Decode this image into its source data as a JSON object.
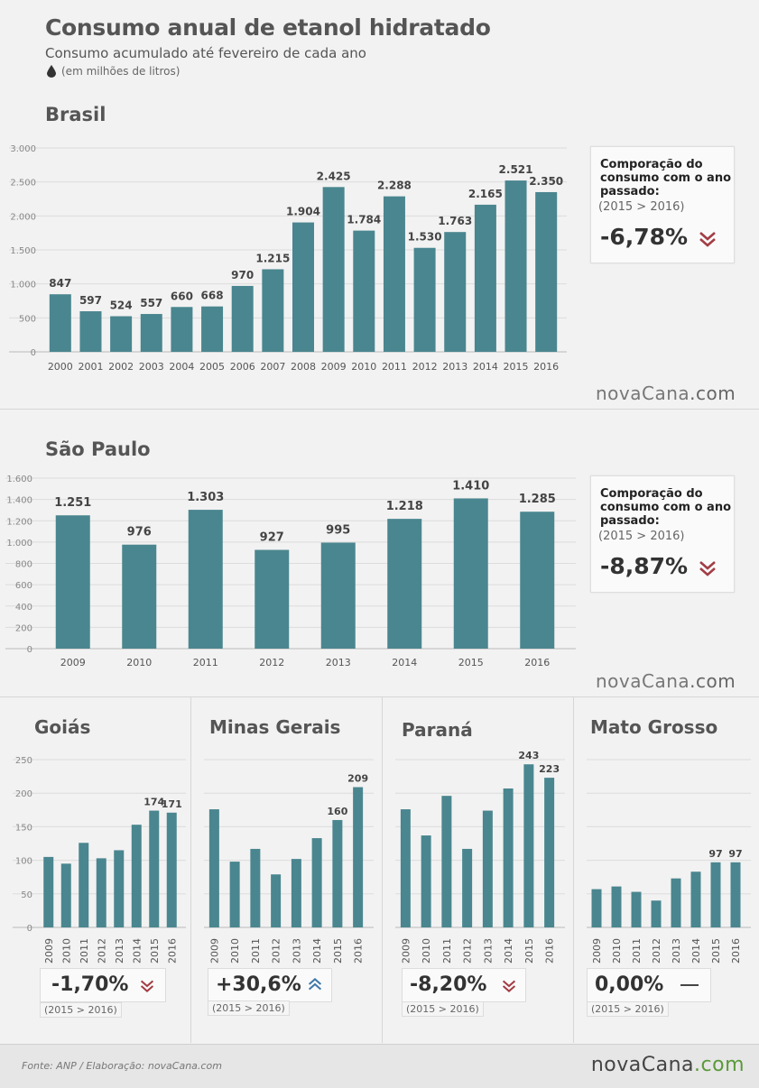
{
  "header": {
    "title": "Consumo anual de etanol hidratado",
    "subtitle": "Consumo acumulado até fevereiro de cada ano",
    "unit": "(em milhões de litros)"
  },
  "brand": {
    "name": "nova",
    "name2": "Cana",
    "tld": ".com"
  },
  "footer": {
    "source": "Fonte: ANP  / Elaboração: novaCana.com"
  },
  "colors": {
    "bar": "#4a868f",
    "down": "#a33d45",
    "up": "#3f78aa",
    "flat": "#444444"
  },
  "comparison": {
    "heading": "Comporação do consumo com o ano passado:",
    "period": "(2015 > 2016)"
  },
  "panels": {
    "brasil": {
      "region": "Brasil",
      "change": "-6,78%",
      "trend": "down"
    },
    "saopaulo": {
      "region": "São Paulo",
      "change": "-8,87%",
      "trend": "down"
    },
    "goias": {
      "region": "Goiás",
      "change": "-1,70%",
      "trend": "down"
    },
    "minas": {
      "region": "Minas Gerais",
      "change": "+30,6%",
      "trend": "up"
    },
    "parana": {
      "region": "Paraná",
      "change": "-8,20%",
      "trend": "down"
    },
    "matogrosso": {
      "region": "Mato Grosso",
      "change": "0,00%",
      "trend": "flat"
    }
  },
  "chart_data": [
    {
      "id": "brasil",
      "type": "bar",
      "categories": [
        "2000",
        "2001",
        "2002",
        "2003",
        "2004",
        "2005",
        "2006",
        "2007",
        "2008",
        "2009",
        "2010",
        "2011",
        "2012",
        "2013",
        "2014",
        "2015",
        "2016"
      ],
      "values": [
        847,
        597,
        524,
        557,
        660,
        668,
        970,
        1215,
        1904,
        2425,
        1784,
        2288,
        1530,
        1763,
        2165,
        2521,
        2350
      ],
      "labels": [
        "847",
        "597",
        "524",
        "557",
        "660",
        "668",
        "970",
        "1.215",
        "1.904",
        "2.425",
        "1.784",
        "2.288",
        "1.530",
        "1.763",
        "2.165",
        "2.521",
        "2.350"
      ],
      "ylim": [
        0,
        3000
      ],
      "yticks": [
        0,
        500,
        1000,
        1500,
        2000,
        2500,
        3000
      ],
      "ytick_labels": [
        "0",
        "500",
        "1.000",
        "1.500",
        "2.000",
        "2.500",
        "3.000"
      ]
    },
    {
      "id": "saopaulo",
      "type": "bar",
      "categories": [
        "2009",
        "2010",
        "2011",
        "2012",
        "2013",
        "2014",
        "2015",
        "2016"
      ],
      "values": [
        1251,
        976,
        1303,
        927,
        995,
        1218,
        1410,
        1285
      ],
      "labels": [
        "1.251",
        "976",
        "1.303",
        "927",
        "995",
        "1.218",
        "1.410",
        "1.285"
      ],
      "ylim": [
        0,
        1600
      ],
      "yticks": [
        0,
        200,
        400,
        600,
        800,
        1000,
        1200,
        1400,
        1600
      ],
      "ytick_labels": [
        "0",
        "200",
        "400",
        "600",
        "800",
        "1.000",
        "1.200",
        "1.400",
        "1.600"
      ]
    },
    {
      "id": "goias",
      "type": "bar",
      "categories": [
        "2009",
        "2010",
        "2011",
        "2012",
        "2013",
        "2014",
        "2015",
        "2016"
      ],
      "values": [
        105,
        95,
        126,
        103,
        115,
        153,
        174,
        171
      ],
      "labels": [
        "",
        "",
        "",
        "",
        "",
        "",
        "174",
        "171"
      ],
      "ylim": [
        0,
        250
      ],
      "yticks": [
        0,
        50,
        100,
        150,
        200,
        250
      ],
      "ytick_labels": [
        "0",
        "50",
        "100",
        "150",
        "200",
        "250"
      ]
    },
    {
      "id": "minas",
      "type": "bar",
      "categories": [
        "2009",
        "2010",
        "2011",
        "2012",
        "2013",
        "2014",
        "2015",
        "2016"
      ],
      "values": [
        176,
        98,
        117,
        79,
        102,
        133,
        160,
        209
      ],
      "labels": [
        "",
        "",
        "",
        "",
        "",
        "",
        "160",
        "209"
      ],
      "ylim": [
        0,
        250
      ]
    },
    {
      "id": "parana",
      "type": "bar",
      "categories": [
        "2009",
        "2010",
        "2011",
        "2012",
        "2013",
        "2014",
        "2015",
        "2016"
      ],
      "values": [
        176,
        137,
        196,
        117,
        174,
        207,
        243,
        223
      ],
      "labels": [
        "",
        "",
        "",
        "",
        "",
        "",
        "243",
        "223"
      ],
      "ylim": [
        0,
        250
      ]
    },
    {
      "id": "matogrosso",
      "type": "bar",
      "categories": [
        "2009",
        "2010",
        "2011",
        "2012",
        "2013",
        "2014",
        "2015",
        "2016"
      ],
      "values": [
        57,
        61,
        53,
        40,
        73,
        83,
        97,
        97
      ],
      "labels": [
        "",
        "",
        "",
        "",
        "",
        "",
        "97",
        "97"
      ],
      "ylim": [
        0,
        250
      ]
    }
  ]
}
